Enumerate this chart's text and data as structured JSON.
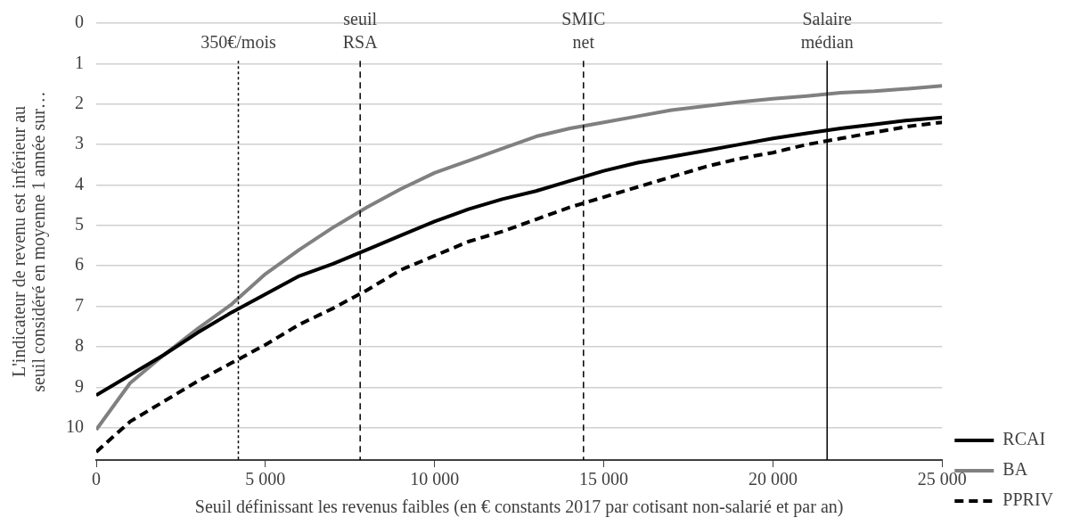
{
  "chart_data": {
    "type": "line",
    "xlabel": "Seuil définissant les revenus faibles (en € constants 2017 par cotisant non-salarié et par an)",
    "ylabel": "L'indicateur de revenu est inférieur au seuil considéré en moyenne 1 année sur…",
    "x": [
      0,
      1000,
      2000,
      3000,
      4000,
      5000,
      6000,
      7000,
      8000,
      9000,
      10000,
      11000,
      12000,
      13000,
      14000,
      15000,
      16000,
      17000,
      18000,
      19000,
      20000,
      21000,
      22000,
      23000,
      24000,
      25000
    ],
    "series": [
      {
        "name": "RCAI",
        "color": "#000000",
        "line_style": "solid",
        "values": [
          9.2,
          8.7,
          8.2,
          7.65,
          7.15,
          6.7,
          6.25,
          5.95,
          5.6,
          5.25,
          4.9,
          4.6,
          4.35,
          4.15,
          3.9,
          3.65,
          3.45,
          3.3,
          3.15,
          3.0,
          2.85,
          2.72,
          2.6,
          2.5,
          2.4,
          2.33
        ]
      },
      {
        "name": "BA",
        "color": "#808080",
        "line_style": "solid",
        "values": [
          10.05,
          8.9,
          8.2,
          7.55,
          6.95,
          6.2,
          5.6,
          5.05,
          4.55,
          4.1,
          3.7,
          3.4,
          3.1,
          2.8,
          2.6,
          2.45,
          2.3,
          2.15,
          2.05,
          1.95,
          1.87,
          1.8,
          1.72,
          1.68,
          1.62,
          1.55
        ]
      },
      {
        "name": "PPRIV",
        "color": "#000000",
        "line_style": "dashed",
        "values": [
          10.6,
          9.85,
          9.35,
          8.85,
          8.4,
          7.95,
          7.45,
          7.05,
          6.6,
          6.1,
          5.75,
          5.4,
          5.15,
          4.85,
          4.55,
          4.3,
          4.05,
          3.8,
          3.55,
          3.35,
          3.2,
          3.0,
          2.85,
          2.7,
          2.55,
          2.45
        ]
      }
    ],
    "xlim": [
      0,
      25000
    ],
    "xticks": [
      0,
      {
        "value": 5000,
        "label": "5 000"
      },
      {
        "value": 10000,
        "label": "10 000"
      },
      {
        "value": 15000,
        "label": "15 000"
      },
      {
        "value": 20000,
        "label": "20 000"
      },
      {
        "value": 25000,
        "label": "25 000"
      }
    ],
    "ylim": [
      10.8,
      0
    ],
    "yticks": [
      0,
      1,
      2,
      3,
      4,
      5,
      6,
      7,
      8,
      9,
      10
    ],
    "ref_lines": [
      {
        "axis": "x",
        "value": 4200,
        "label": "350€/mois",
        "color": "#000000",
        "line_style": "dotted"
      },
      {
        "axis": "x",
        "value": 7800,
        "label": "seuil RSA",
        "color": "#000000",
        "line_style": "dashed"
      },
      {
        "axis": "x",
        "value": 14400,
        "label": "SMIC net",
        "color": "#000000",
        "line_style": "dashed"
      },
      {
        "axis": "x",
        "value": 21600,
        "label": "Salaire médian",
        "color": "#000000",
        "line_style": "solid"
      }
    ],
    "grid": "y",
    "legend": "right",
    "marker": "none"
  }
}
